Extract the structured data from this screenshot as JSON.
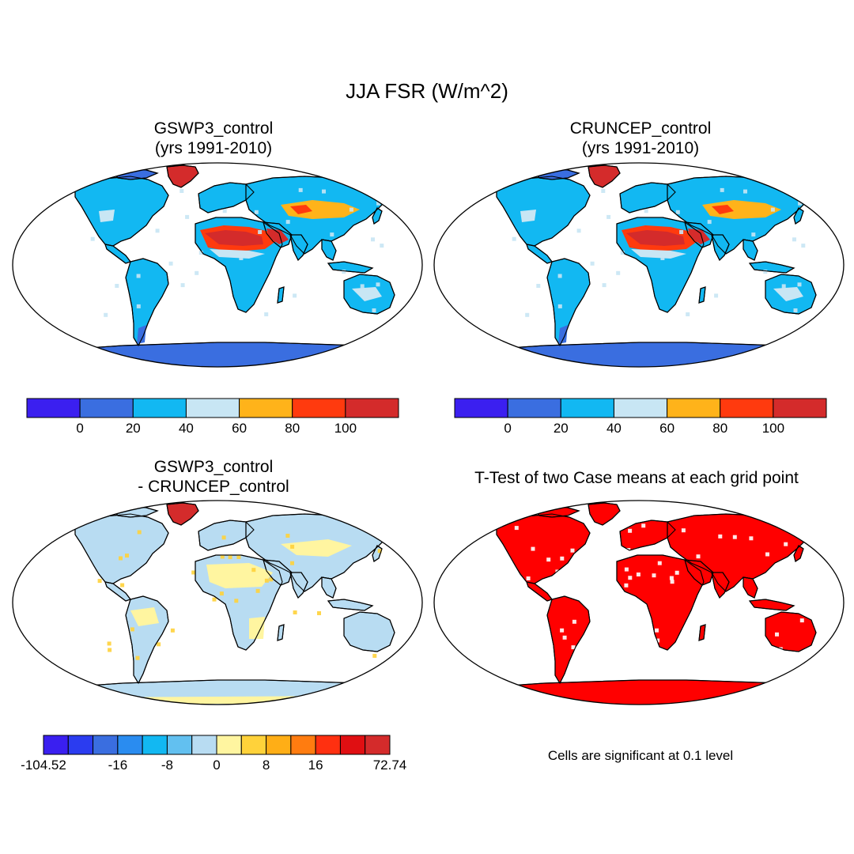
{
  "title": "JJA FSR (W/m^2)",
  "panels": {
    "top_left": {
      "title_line1": "GSWP3_control",
      "title_line2": "(yrs 1991-2010)"
    },
    "top_right": {
      "title_line1": "CRUNCEP_control",
      "title_line2": "(yrs 1991-2010)"
    },
    "bottom_left": {
      "title_line1": "GSWP3_control",
      "title_line2": "- CRUNCEP_control"
    },
    "bottom_right": {
      "title": "T-Test of two Case means at each grid point",
      "note": "Cells are significant at 0.1 level"
    }
  },
  "colorbars": {
    "main": {
      "colors": [
        "#3b1ff0",
        "#3a6ee0",
        "#12b8f2",
        "#c8e6f4",
        "#ffb31a",
        "#ff3a0e",
        "#d42b2b"
      ],
      "labels": [
        "0",
        "20",
        "40",
        "60",
        "80",
        "100"
      ]
    },
    "diff": {
      "colors": [
        "#3a1ff0",
        "#2b3cf0",
        "#3a6ee0",
        "#2a8cf0",
        "#12b8f2",
        "#62c0f0",
        "#b8dcf2",
        "#fff5a0",
        "#ffd23a",
        "#ffae16",
        "#ff7c10",
        "#ff3010",
        "#e00f12",
        "#d42b2b"
      ],
      "labels": [
        "-104.52",
        "-16",
        "-8",
        "0",
        "8",
        "16",
        "72.74"
      ]
    }
  },
  "map_colors": {
    "ocean": "#ffffff",
    "land_low": "#12b8f2",
    "desert_high": "#d42b2b",
    "desert_mid": "#ff3a0e",
    "orange": "#ffb31a",
    "light": "#c8e6f4",
    "antarctica": "#3a6ee0",
    "diff_land": "#b8dcf2",
    "diff_yellow": "#fff5a0",
    "signif": "#ff0000"
  }
}
